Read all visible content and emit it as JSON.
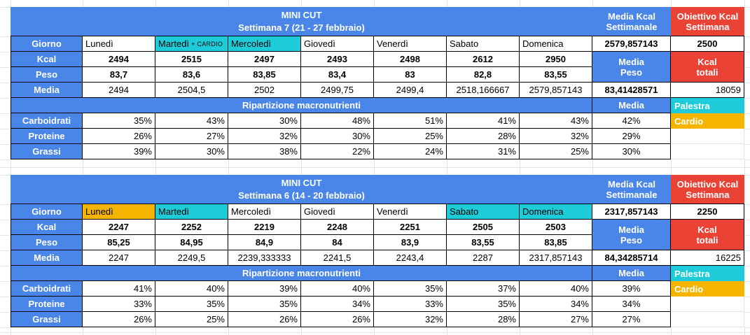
{
  "colors": {
    "blue": "#4a86e8",
    "red": "#ea4335",
    "cyan": "#1ecbd8",
    "orange": "#f4b400"
  },
  "row_labels": {
    "giorno": "Giorno",
    "kcal": "Kcal",
    "peso": "Peso",
    "media": "Media",
    "ripartizione": "Ripartizione macronutrienti",
    "carboidrati": "Carboidrati",
    "proteine": "Proteine",
    "grassi": "Grassi",
    "media_col": "Media"
  },
  "right_headers": {
    "media_kcal": "Media Kcal\nSettimanale",
    "obiettivo": "Obiettivo Kcal\nSettimana",
    "media_peso": "Media\nPeso",
    "kcal_totali": "Kcal\ntotali"
  },
  "legend": {
    "palestra": "Palestra",
    "cardio": "Cardio"
  },
  "tables": [
    {
      "title": "MINI CUT",
      "subtitle": "Settimana 7 (21 - 27 febbraio)",
      "days": [
        {
          "name": "Lunedì",
          "bg": ""
        },
        {
          "name": "Martedì",
          "suffix": "+ CARDIO",
          "bg": "cyan"
        },
        {
          "name": "Mercoledì",
          "bg": "cyan"
        },
        {
          "name": "Giovedì",
          "bg": ""
        },
        {
          "name": "Venerdì",
          "bg": ""
        },
        {
          "name": "Sabato",
          "bg": ""
        },
        {
          "name": "Domenica",
          "bg": ""
        }
      ],
      "kcal": [
        "2494",
        "2515",
        "2497",
        "2493",
        "2498",
        "2612",
        "2950"
      ],
      "peso": [
        "83,7",
        "83,6",
        "83,85",
        "83,4",
        "83",
        "82,8",
        "83,55"
      ],
      "media": [
        "2494",
        "2504,5",
        "2502",
        "2499,75",
        "2499,4",
        "2518,166667",
        "2579,857143"
      ],
      "carboidrati": [
        "35%",
        "43%",
        "30%",
        "48%",
        "51%",
        "41%",
        "43%"
      ],
      "proteine": [
        "26%",
        "27%",
        "32%",
        "30%",
        "25%",
        "28%",
        "32%"
      ],
      "grassi": [
        "39%",
        "30%",
        "38%",
        "22%",
        "24%",
        "31%",
        "25%"
      ],
      "media_kcal_settimanale": "2579,857143",
      "obiettivo_kcal": "2500",
      "media_peso": "83,41428571",
      "kcal_totali": "18059",
      "macro_media": {
        "carboidrati": "42%",
        "proteine": "29%",
        "grassi": "30%"
      }
    },
    {
      "title": "MINI CUT",
      "subtitle": "Settimana 6 (14 - 20 febbraio)",
      "days": [
        {
          "name": "Lunedì",
          "bg": "orange"
        },
        {
          "name": "Martedì",
          "bg": "cyan"
        },
        {
          "name": "Mercoledì",
          "bg": ""
        },
        {
          "name": "Giovedì",
          "bg": ""
        },
        {
          "name": "Venerdì",
          "bg": ""
        },
        {
          "name": "Sabato",
          "bg": "cyan"
        },
        {
          "name": "Domenica",
          "bg": "cyan"
        }
      ],
      "kcal": [
        "2247",
        "2252",
        "2219",
        "2248",
        "2251",
        "2505",
        "2503"
      ],
      "peso": [
        "85,25",
        "84,95",
        "84,9",
        "84",
        "83,9",
        "83,55",
        "83,85"
      ],
      "media": [
        "2247",
        "2249,5",
        "2239,333333",
        "2241,5",
        "2243,4",
        "2287",
        "2317,857143"
      ],
      "carboidrati": [
        "41%",
        "40%",
        "39%",
        "40%",
        "35%",
        "37%",
        "40%"
      ],
      "proteine": [
        "33%",
        "35%",
        "35%",
        "34%",
        "33%",
        "35%",
        "34%"
      ],
      "grassi": [
        "26%",
        "25%",
        "26%",
        "26%",
        "32%",
        "28%",
        "27%"
      ],
      "media_kcal_settimanale": "2317,857143",
      "obiettivo_kcal": "2250",
      "media_peso": "84,34285714",
      "kcal_totali": "16225",
      "macro_media": {
        "carboidrati": "39%",
        "proteine": "34%",
        "grassi": "27%"
      }
    }
  ]
}
